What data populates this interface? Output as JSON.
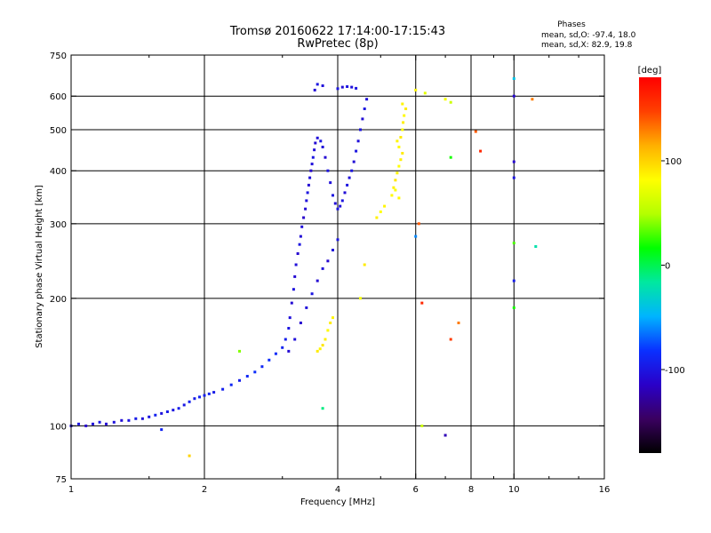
{
  "chart_data": {
    "type": "scatter",
    "title": "Tromsø 20160622 17:14:00-17:15:43",
    "subtitle": "RwPretec (8p)",
    "phases_header": "Phases",
    "phases_o": "mean, sd,O: -97.4, 18.0",
    "phases_x": "mean, sd,X:  82.9, 19.8",
    "xlabel": "Frequency [MHz]",
    "ylabel": "Stationary phase Virtual Height [km]",
    "x_scale": "log",
    "y_scale": "log",
    "xlim": [
      1,
      16
    ],
    "ylim": [
      75,
      750
    ],
    "x_ticks": [
      1,
      2,
      4,
      6,
      8,
      10,
      16
    ],
    "x_tick_labels": [
      "1",
      "2",
      "4",
      "6",
      "8",
      "10",
      "16"
    ],
    "x_grid": [
      2,
      4,
      6,
      8,
      10
    ],
    "x_minor": [
      1.5,
      3,
      5,
      7,
      9,
      12,
      14
    ],
    "y_ticks": [
      75,
      100,
      200,
      300,
      400,
      500,
      600,
      750
    ],
    "y_tick_labels": [
      "75",
      "100",
      "200",
      "300",
      "400",
      "500",
      "600",
      "750"
    ],
    "y_grid": [
      100,
      200,
      300,
      400,
      500,
      600
    ],
    "grid": true,
    "colorbar": {
      "label": "[deg]",
      "range": [
        -180,
        180
      ],
      "ticks": [
        100,
        0,
        -100
      ],
      "tick_labels": [
        "100",
        "0",
        "-100"
      ],
      "colors": [
        "#000000",
        "#3a0060",
        "#2a00c8",
        "#0a30ff",
        "#00b4ff",
        "#00e8a0",
        "#00ff00",
        "#b4ff00",
        "#ffff00",
        "#ffb000",
        "#ff4000",
        "#ff0000"
      ]
    },
    "series": [
      {
        "trace": "O",
        "points": [
          [
            1.0,
            100,
            -105
          ],
          [
            1.04,
            101,
            -100
          ],
          [
            1.08,
            100,
            -110
          ],
          [
            1.12,
            101,
            -104
          ],
          [
            1.16,
            102,
            -98
          ],
          [
            1.2,
            101,
            -108
          ],
          [
            1.25,
            102,
            -102
          ],
          [
            1.3,
            103,
            -106
          ],
          [
            1.35,
            103,
            -100
          ],
          [
            1.4,
            104,
            -96
          ],
          [
            1.45,
            104,
            -104
          ],
          [
            1.5,
            105,
            -100
          ],
          [
            1.55,
            106,
            -92
          ],
          [
            1.6,
            107,
            -102
          ],
          [
            1.65,
            108,
            -96
          ],
          [
            1.7,
            109,
            -100
          ],
          [
            1.75,
            110,
            -94
          ],
          [
            1.8,
            112,
            -98
          ],
          [
            1.85,
            114,
            -92
          ],
          [
            1.9,
            116,
            -96
          ],
          [
            1.95,
            117,
            -90
          ],
          [
            2.0,
            118,
            -94
          ],
          [
            2.05,
            119,
            -90
          ],
          [
            2.1,
            120,
            -96
          ],
          [
            2.2,
            122,
            -92
          ],
          [
            2.3,
            125,
            -88
          ],
          [
            2.4,
            128,
            -94
          ],
          [
            2.5,
            131,
            -88
          ],
          [
            2.6,
            134,
            -84
          ],
          [
            2.7,
            138,
            -88
          ],
          [
            2.8,
            143,
            -84
          ],
          [
            2.9,
            148,
            -86
          ],
          [
            3.0,
            153,
            -90
          ],
          [
            3.05,
            160,
            -94
          ],
          [
            3.1,
            170,
            -100
          ],
          [
            3.12,
            180,
            -104
          ],
          [
            3.15,
            195,
            -108
          ],
          [
            3.18,
            210,
            -102
          ],
          [
            3.2,
            225,
            -108
          ],
          [
            3.22,
            240,
            -104
          ],
          [
            3.25,
            255,
            -110
          ],
          [
            3.28,
            268,
            -100
          ],
          [
            3.3,
            280,
            -106
          ],
          [
            3.32,
            295,
            -104
          ],
          [
            3.35,
            310,
            -112
          ],
          [
            3.38,
            325,
            -108
          ],
          [
            3.4,
            340,
            -104
          ],
          [
            3.42,
            355,
            -100
          ],
          [
            3.44,
            370,
            -108
          ],
          [
            3.46,
            385,
            -104
          ],
          [
            3.48,
            400,
            -110
          ],
          [
            3.5,
            415,
            -104
          ],
          [
            3.52,
            430,
            -100
          ],
          [
            3.54,
            448,
            -106
          ],
          [
            3.56,
            465,
            -108
          ],
          [
            3.6,
            478,
            -104
          ],
          [
            3.66,
            470,
            -100
          ],
          [
            3.7,
            455,
            -104
          ],
          [
            3.75,
            430,
            -108
          ],
          [
            3.8,
            400,
            -100
          ],
          [
            3.85,
            375,
            -104
          ],
          [
            3.9,
            350,
            -100
          ],
          [
            3.95,
            335,
            -106
          ],
          [
            4.0,
            325,
            -100
          ],
          [
            4.05,
            330,
            -104
          ],
          [
            4.1,
            340,
            -100
          ],
          [
            4.15,
            355,
            -106
          ],
          [
            4.2,
            370,
            -100
          ],
          [
            4.25,
            385,
            -104
          ],
          [
            4.3,
            400,
            -100
          ],
          [
            4.35,
            420,
            -106
          ],
          [
            4.4,
            445,
            -100
          ],
          [
            4.45,
            470,
            -104
          ],
          [
            4.5,
            500,
            -100
          ],
          [
            4.55,
            530,
            -106
          ],
          [
            4.6,
            560,
            -100
          ],
          [
            4.65,
            590,
            -104
          ],
          [
            4.0,
            625,
            -100
          ],
          [
            4.1,
            630,
            -106
          ],
          [
            4.2,
            632,
            -100
          ],
          [
            4.3,
            630,
            -104
          ],
          [
            4.4,
            626,
            -100
          ],
          [
            3.55,
            620,
            -106
          ],
          [
            3.6,
            640,
            -100
          ],
          [
            3.7,
            635,
            -104
          ],
          [
            3.1,
            150,
            -108
          ],
          [
            3.2,
            160,
            -104
          ],
          [
            3.3,
            175,
            -110
          ],
          [
            3.4,
            190,
            -104
          ],
          [
            3.5,
            205,
            -100
          ],
          [
            3.6,
            220,
            -108
          ],
          [
            3.7,
            235,
            -104
          ],
          [
            3.8,
            245,
            -110
          ],
          [
            3.9,
            260,
            -104
          ],
          [
            4.0,
            275,
            -100
          ]
        ]
      },
      {
        "trace": "X",
        "points": [
          [
            3.6,
            150,
            90
          ],
          [
            3.65,
            152,
            85
          ],
          [
            3.7,
            155,
            92
          ],
          [
            3.75,
            160,
            88
          ],
          [
            3.8,
            168,
            84
          ],
          [
            3.85,
            175,
            90
          ],
          [
            3.9,
            180,
            86
          ],
          [
            5.3,
            350,
            84
          ],
          [
            5.35,
            365,
            88
          ],
          [
            5.4,
            380,
            92
          ],
          [
            5.45,
            395,
            86
          ],
          [
            5.5,
            410,
            82
          ],
          [
            5.55,
            425,
            88
          ],
          [
            5.6,
            440,
            90
          ],
          [
            5.5,
            455,
            84
          ],
          [
            5.45,
            470,
            86
          ],
          [
            5.55,
            480,
            90
          ],
          [
            5.6,
            500,
            82
          ],
          [
            5.62,
            520,
            88
          ],
          [
            5.65,
            540,
            84
          ],
          [
            5.7,
            560,
            90
          ],
          [
            5.6,
            575,
            86
          ],
          [
            5.4,
            360,
            80
          ],
          [
            5.5,
            345,
            84
          ],
          [
            4.9,
            310,
            88
          ],
          [
            5.0,
            320,
            82
          ],
          [
            5.1,
            330,
            86
          ],
          [
            4.5,
            200,
            78
          ],
          [
            6.0,
            620,
            86
          ],
          [
            6.3,
            610,
            70
          ],
          [
            7.0,
            590,
            78
          ],
          [
            7.2,
            580,
            60
          ],
          [
            10.0,
            270,
            30
          ],
          [
            10.0,
            190,
            20
          ],
          [
            4.6,
            240,
            90
          ],
          [
            2.4,
            150,
            40
          ],
          [
            6.2,
            100,
            60
          ]
        ]
      },
      {
        "trace": "noise",
        "points": [
          [
            6.1,
            300,
            140
          ],
          [
            6.2,
            195,
            160
          ],
          [
            7.2,
            160,
            150
          ],
          [
            7.5,
            175,
            130
          ],
          [
            8.2,
            495,
            140
          ],
          [
            8.4,
            445,
            160
          ],
          [
            7.0,
            95,
            -120
          ],
          [
            7.2,
            430,
            20
          ],
          [
            6.0,
            280,
            -60
          ],
          [
            10.0,
            660,
            -40
          ],
          [
            10.0,
            420,
            -110
          ],
          [
            10.0,
            385,
            -100
          ],
          [
            10.0,
            220,
            -95
          ],
          [
            11.0,
            590,
            130
          ],
          [
            11.2,
            265,
            -20
          ],
          [
            10.0,
            600,
            -110
          ],
          [
            1.6,
            98,
            -90
          ],
          [
            3.7,
            110,
            -10
          ],
          [
            1.85,
            85,
            100
          ]
        ]
      }
    ]
  }
}
